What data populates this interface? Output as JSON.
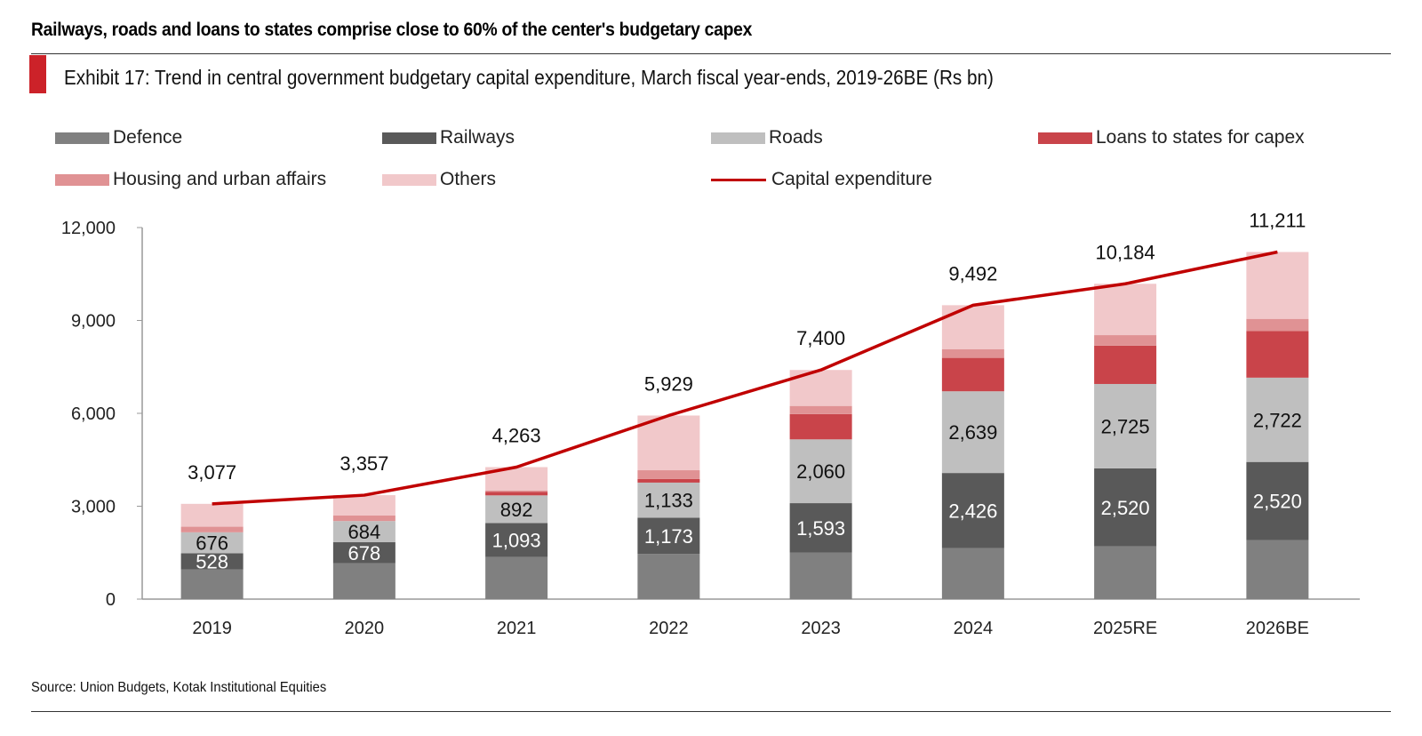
{
  "header": {
    "headline": "Railways, roads and loans to states comprise close to 60% of the center's budgetary capex",
    "subtitle": "Exhibit 17: Trend in central government budgetary capital expenditure, March fiscal year-ends, 2019-26BE (Rs bn)"
  },
  "footer": {
    "source": "Source: Union Budgets, Kotak Institutional Equities"
  },
  "chart_data": {
    "type": "bar",
    "stacked": true,
    "title": "Trend in central government budgetary capital expenditure, March fiscal year-ends, 2019-26BE (Rs bn)",
    "xlabel": "",
    "ylabel": "",
    "ylim": [
      0,
      12000
    ],
    "yticks": [
      0,
      3000,
      6000,
      9000,
      12000
    ],
    "ytick_labels": [
      "0",
      "3,000",
      "6,000",
      "9,000",
      "12,000"
    ],
    "grid": false,
    "legend_position": "top",
    "categories": [
      "2019",
      "2020",
      "2021",
      "2022",
      "2023",
      "2024",
      "2025RE",
      "2026BE"
    ],
    "series": [
      {
        "name": "Defence",
        "color": "#808080",
        "values": [
          954,
          1159,
          1365,
          1457,
          1506,
          1647,
          1703,
          1910
        ],
        "labeled": false
      },
      {
        "name": "Railways",
        "color": "#595959",
        "values": [
          528,
          678,
          1093,
          1173,
          1593,
          2426,
          2520,
          2520
        ],
        "labeled": true,
        "label_color": "#ffffff"
      },
      {
        "name": "Roads",
        "color": "#bfbfbf",
        "values": [
          676,
          684,
          892,
          1133,
          2060,
          2639,
          2725,
          2722
        ],
        "labeled": true,
        "label_color": "#111111"
      },
      {
        "name": "Loans to states for capex",
        "color": "#c9444a",
        "values": [
          0,
          0,
          110,
          114,
          816,
          1079,
          1239,
          1505
        ],
        "labeled": false
      },
      {
        "name": "Housing and urban affairs",
        "color": "#e09294",
        "values": [
          180,
          178,
          50,
          285,
          264,
          283,
          338,
          395
        ],
        "labeled": false
      },
      {
        "name": "Others",
        "color": "#f1c8ca",
        "values": [
          739,
          658,
          753,
          1767,
          1161,
          1418,
          1659,
          2159
        ],
        "labeled": false
      }
    ],
    "line_series": {
      "name": "Capital expenditure",
      "color": "#c00000",
      "values": [
        3077,
        3357,
        4263,
        5929,
        7400,
        9492,
        10184,
        11211
      ],
      "labels": [
        "3,077",
        "3,357",
        "4,263",
        "5,929",
        "7,400",
        "9,492",
        "10,184",
        "11,211"
      ]
    },
    "segment_labels": {
      "Railways": [
        "528",
        "678",
        "1,093",
        "1,173",
        "1,593",
        "2,426",
        "2,520",
        "2,520"
      ],
      "Roads": [
        "676",
        "684",
        "892",
        "1,133",
        "2,060",
        "2,639",
        "2,725",
        "2,722"
      ]
    }
  }
}
